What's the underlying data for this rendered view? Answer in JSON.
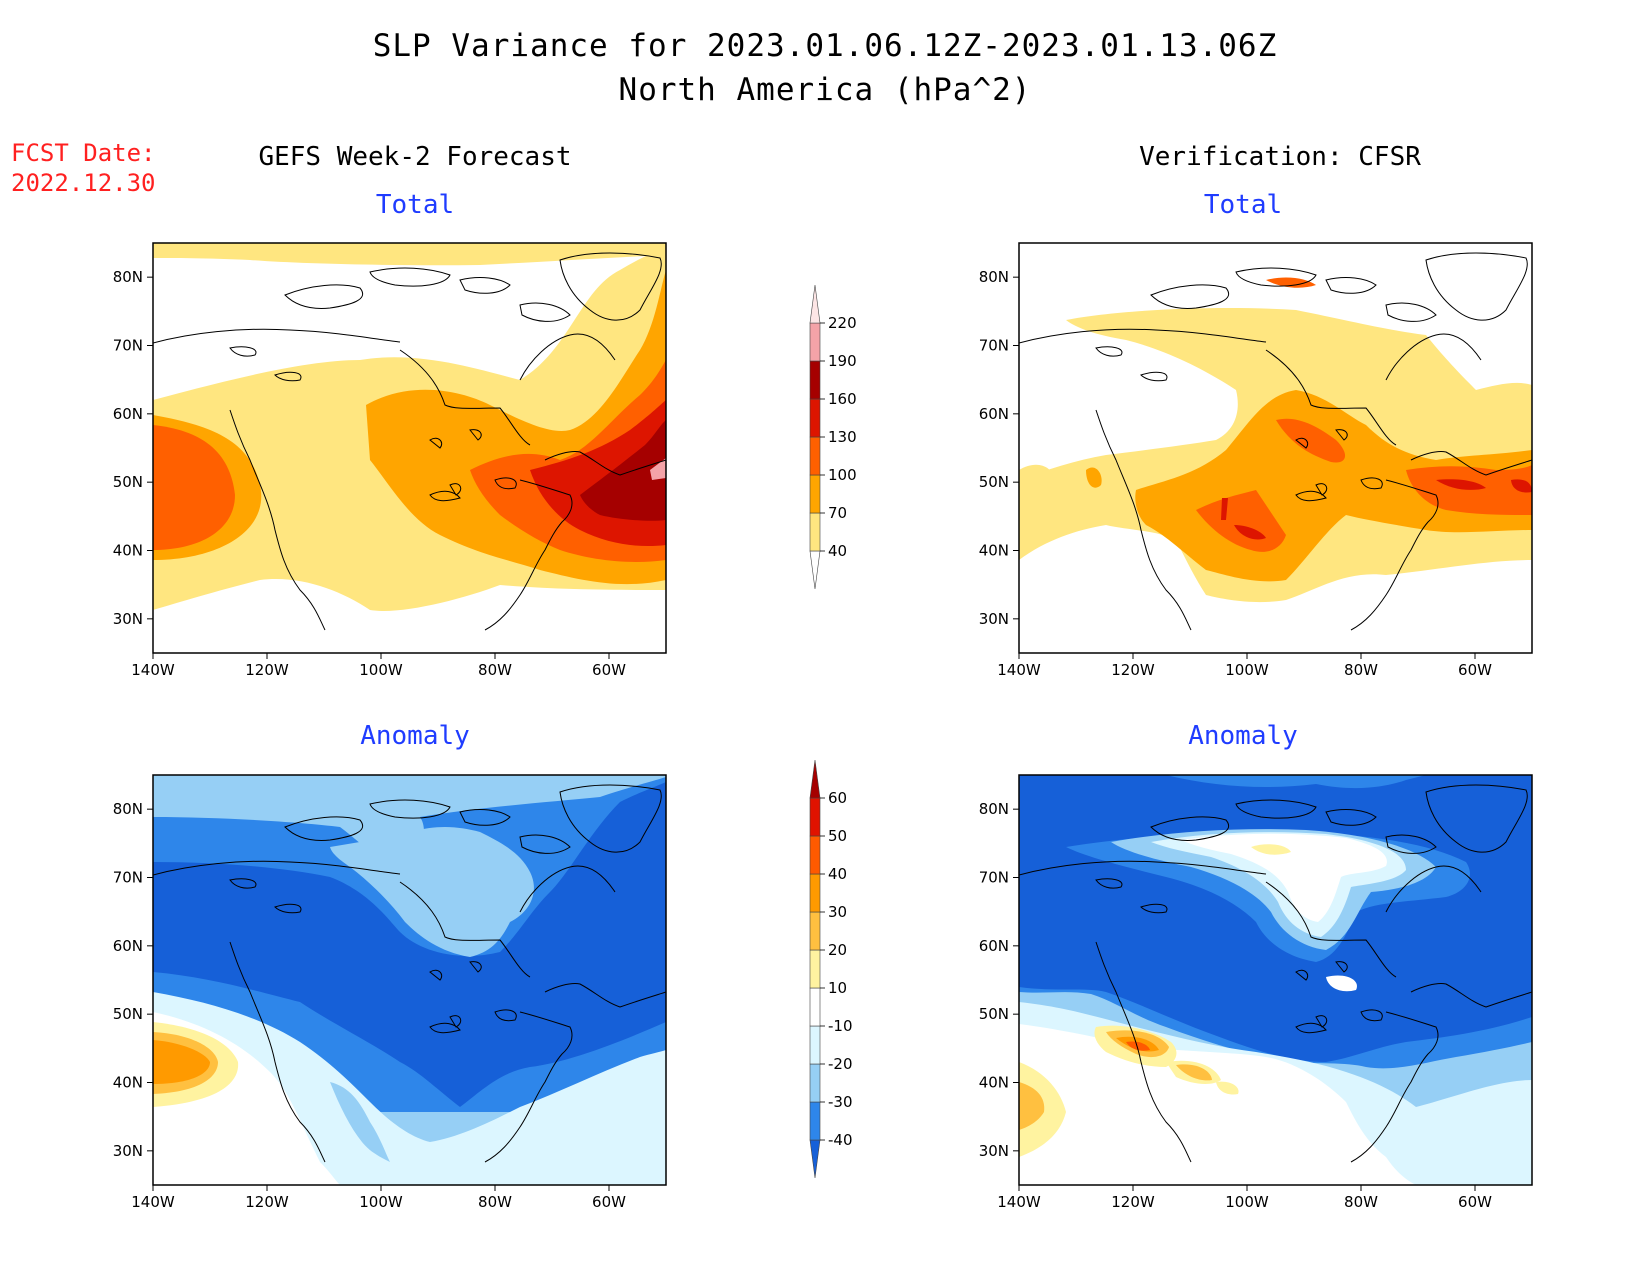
{
  "title_line1": "SLP Variance for 2023.01.06.12Z-2023.01.13.06Z",
  "title_line2": "North America (hPa^2)",
  "fcst_label": "FCST Date:",
  "fcst_date": "2022.12.30",
  "left_header": "GEFS Week-2 Forecast",
  "right_header": "Verification: CFSR",
  "panel_titles": {
    "tl": "Total",
    "tr": "Total",
    "bl": "Anomaly",
    "br": "Anomaly"
  },
  "lat_ticks": [
    "30N",
    "40N",
    "50N",
    "60N",
    "70N",
    "80N"
  ],
  "lon_ticks": [
    "140W",
    "120W",
    "100W",
    "80W",
    "60W"
  ],
  "total_colorbar": {
    "labels": [
      "40",
      "70",
      "100",
      "130",
      "160",
      "190",
      "220"
    ],
    "colors": [
      "#ffffff",
      "#ffe680",
      "#ffa500",
      "#ff6000",
      "#dd1500",
      "#a50000",
      "#f4a3a8",
      "#fde6e6"
    ]
  },
  "anomaly_colorbar": {
    "labels": [
      "-40",
      "-30",
      "-20",
      "-10",
      "10",
      "20",
      "30",
      "40",
      "50",
      "60"
    ],
    "colors": [
      "#1660d8",
      "#2e86ea",
      "#96cff5",
      "#dcf6ff",
      "#ffffff",
      "#fff3a0",
      "#ffc040",
      "#ff9a00",
      "#ff5a00",
      "#e01200",
      "#a50000"
    ]
  },
  "map_colors": {
    "total": {
      "c40": "#ffe680",
      "c70": "#ffa500",
      "c100": "#ff6000",
      "c130": "#dd1500",
      "c160": "#a50000",
      "c190": "#f4a3a8"
    },
    "anomaly": {
      "n40": "#1660d8",
      "n30": "#2e86ea",
      "n20": "#96cff5",
      "n10": "#dcf6ff",
      "p10": "#fff3a0",
      "p20": "#ffc040",
      "p30": "#ff9a00",
      "p40": "#ff5a00"
    }
  }
}
